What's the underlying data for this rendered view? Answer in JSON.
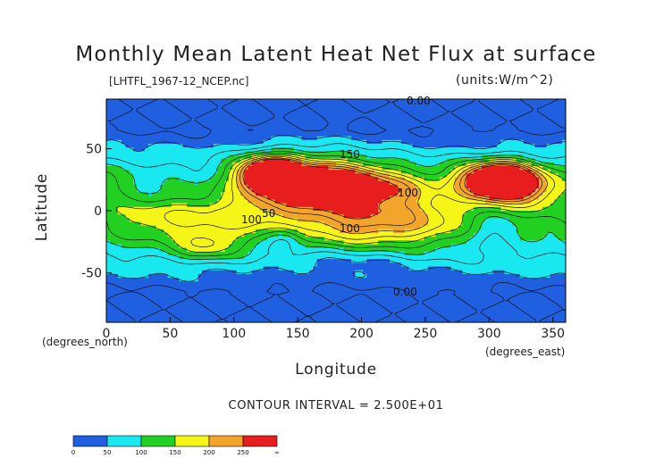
{
  "chart_data": {
    "type": "heatmap",
    "title": "Monthly Mean Latent Heat Net Flux at surface",
    "source_label": "[LHTFL_1967-12_NCEP.nc]",
    "units_label": "(units:W/m^2)",
    "xlabel": "Longitude",
    "ylabel": "Latitude",
    "x_unit_label": "(degrees_east)",
    "y_unit_label": "(degrees_north)",
    "xlim": [
      0,
      360
    ],
    "ylim": [
      -90,
      90
    ],
    "x_ticks": [
      0,
      50,
      100,
      150,
      200,
      250,
      300,
      350
    ],
    "y_ticks": [
      50,
      0,
      -50
    ],
    "contour_interval_label": "CONTOUR INTERVAL = 2.500E+01",
    "contour_annotations": [
      "0.00",
      "50",
      "150",
      "100",
      "100",
      "100",
      "0.00"
    ],
    "colorbar": {
      "bins": [
        {
          "from": 0,
          "to": 50,
          "color": "#1f5fe0"
        },
        {
          "from": 50,
          "to": 100,
          "color": "#19e8f0"
        },
        {
          "from": 100,
          "to": 150,
          "color": "#22d022"
        },
        {
          "from": 150,
          "to": 200,
          "color": "#f5f518"
        },
        {
          "from": 200,
          "to": 250,
          "color": "#f2a52a"
        },
        {
          "from": 250,
          "to": "∞",
          "color": "#e81d1d"
        }
      ],
      "tick_labels": [
        "0",
        "50",
        "100",
        "150",
        "200",
        "250",
        "∞"
      ]
    }
  }
}
